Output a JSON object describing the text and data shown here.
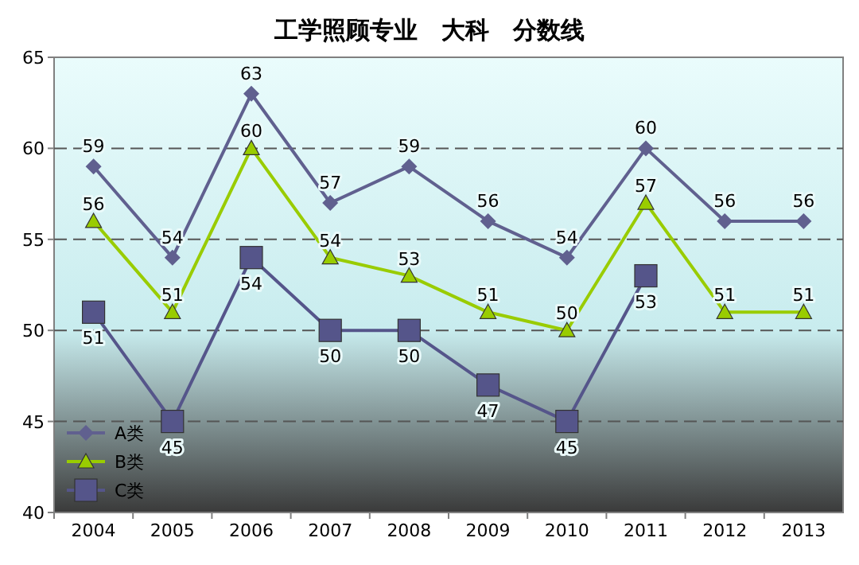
{
  "chart_data": {
    "type": "line",
    "title": "工学照顾专业　大科　分数线",
    "categories": [
      "2004",
      "2005",
      "2006",
      "2007",
      "2008",
      "2009",
      "2010",
      "2011",
      "2012",
      "2013"
    ],
    "series": [
      {
        "name": "A类",
        "color": "#60608f",
        "marker": "diamond",
        "values": [
          59,
          54,
          63,
          57,
          59,
          56,
          54,
          60,
          56,
          56
        ]
      },
      {
        "name": "B类",
        "color": "#99cc00",
        "marker": "triangle",
        "values": [
          56,
          51,
          60,
          54,
          53,
          51,
          50,
          57,
          51,
          51
        ]
      },
      {
        "name": "C类",
        "color": "#55558a",
        "marker": "square",
        "values": [
          51,
          45,
          54,
          50,
          50,
          47,
          45,
          53,
          null,
          null
        ]
      }
    ],
    "ylim": [
      40,
      65
    ],
    "yticks": [
      40,
      45,
      50,
      55,
      60,
      65
    ],
    "grid": "y",
    "legend": "bottom left",
    "data_labels": true
  }
}
